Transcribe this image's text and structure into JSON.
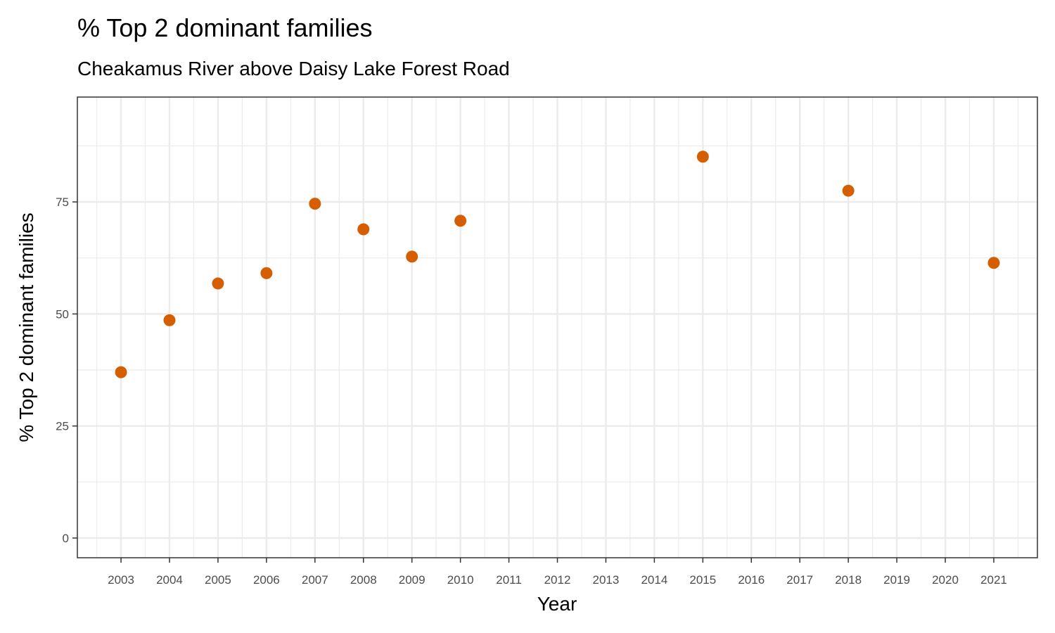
{
  "chart_data": {
    "type": "scatter",
    "title": "% Top 2 dominant families",
    "subtitle": "Cheakamus River above Daisy Lake Forest Road",
    "xlabel": "Year",
    "ylabel": "% Top 2 dominant families",
    "x_ticks": [
      "2003",
      "2004",
      "2005",
      "2006",
      "2007",
      "2008",
      "2009",
      "2010",
      "2011",
      "2012",
      "2013",
      "2014",
      "2015",
      "2016",
      "2017",
      "2018",
      "2019",
      "2020",
      "2021"
    ],
    "y_ticks": [
      0,
      25,
      50,
      75
    ],
    "xlim": [
      2002.1,
      2021.9
    ],
    "ylim": [
      -4.4,
      98.4
    ],
    "grid": true,
    "legend": "none",
    "point_color": "#D55E00",
    "points": [
      {
        "x": 2003,
        "y": 37.0
      },
      {
        "x": 2004,
        "y": 48.6
      },
      {
        "x": 2005,
        "y": 56.8
      },
      {
        "x": 2006,
        "y": 59.1
      },
      {
        "x": 2007,
        "y": 74.6
      },
      {
        "x": 2008,
        "y": 68.9
      },
      {
        "x": 2009,
        "y": 62.8
      },
      {
        "x": 2010,
        "y": 70.8
      },
      {
        "x": 2015,
        "y": 85.1
      },
      {
        "x": 2018,
        "y": 77.5
      },
      {
        "x": 2021,
        "y": 61.4
      }
    ]
  }
}
